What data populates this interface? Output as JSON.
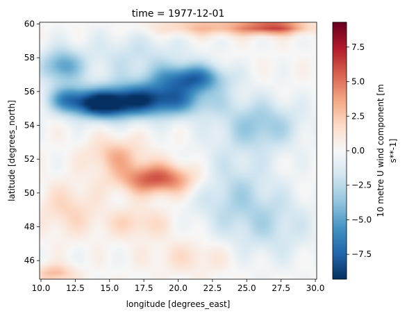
{
  "chart_data": {
    "type": "heatmap",
    "title": "time = 1977-12-01",
    "xlabel": "longitude [degrees_east]",
    "ylabel": "latitude [degrees_north]",
    "colorbar_label_lines": [
      "10 metre U wind component [m",
      "s**-1]"
    ],
    "colormap": "RdBu_r",
    "x_range": [
      9.9,
      30.1
    ],
    "y_range": [
      44.9,
      60.1
    ],
    "vmin": -9.3,
    "vmax": 9.3,
    "x_ticks": [
      10.0,
      12.5,
      15.0,
      17.5,
      20.0,
      22.5,
      25.0,
      27.5,
      30.0
    ],
    "x_tick_labels": [
      "10.0",
      "12.5",
      "15.0",
      "17.5",
      "20.0",
      "22.5",
      "25.0",
      "27.5",
      "30.0"
    ],
    "y_ticks": [
      46,
      48,
      50,
      52,
      54,
      56,
      58,
      60
    ],
    "y_tick_labels": [
      "46",
      "48",
      "50",
      "52",
      "54",
      "56",
      "58",
      "60"
    ],
    "colorbar_ticks": [
      -7.5,
      -5.0,
      -2.5,
      0.0,
      2.5,
      5.0,
      7.5
    ],
    "colorbar_tick_labels": [
      "−7.5",
      "−5.0",
      "−2.5",
      "0.0",
      "2.5",
      "5.0",
      "7.5"
    ],
    "grid_resolution_deg": 0.25,
    "features": [
      {
        "lon": 18.0,
        "lat": 55.5,
        "value": -8.5,
        "spread_lon": 4.0,
        "spread_lat": 1.0
      },
      {
        "lon": 14.5,
        "lat": 55.2,
        "value": -7.5,
        "spread_lon": 2.0,
        "spread_lat": 0.8
      },
      {
        "lon": 21.0,
        "lat": 56.8,
        "value": -6.5,
        "spread_lon": 2.5,
        "spread_lat": 0.8
      },
      {
        "lon": 11.5,
        "lat": 57.5,
        "value": -5.0,
        "spread_lon": 1.5,
        "spread_lat": 1.0
      },
      {
        "lon": 12.0,
        "lat": 55.5,
        "value": -5.0,
        "spread_lon": 1.5,
        "spread_lat": 0.8
      },
      {
        "lon": 26.0,
        "lat": 54.0,
        "value": -3.5,
        "spread_lon": 3.0,
        "spread_lat": 1.5
      },
      {
        "lon": 24.0,
        "lat": 50.0,
        "value": -2.5,
        "spread_lon": 3.0,
        "spread_lat": 2.5
      },
      {
        "lon": 27.0,
        "lat": 48.0,
        "value": -2.0,
        "spread_lon": 3.0,
        "spread_lat": 2.0
      },
      {
        "lon": 17.0,
        "lat": 58.0,
        "value": -2.0,
        "spread_lon": 4.0,
        "spread_lat": 1.5
      },
      {
        "lon": 18.5,
        "lat": 50.8,
        "value": 6.0,
        "spread_lon": 2.8,
        "spread_lat": 0.9
      },
      {
        "lon": 15.5,
        "lat": 52.2,
        "value": 3.0,
        "spread_lon": 2.0,
        "spread_lat": 1.0
      },
      {
        "lon": 27.0,
        "lat": 59.8,
        "value": 6.0,
        "spread_lon": 2.5,
        "spread_lat": 0.4
      },
      {
        "lon": 22.0,
        "lat": 59.8,
        "value": 3.0,
        "spread_lon": 4.0,
        "spread_lat": 0.5
      },
      {
        "lon": 12.0,
        "lat": 49.0,
        "value": 2.0,
        "spread_lon": 2.0,
        "spread_lat": 1.5
      },
      {
        "lon": 17.0,
        "lat": 48.2,
        "value": 2.0,
        "spread_lon": 2.5,
        "spread_lat": 0.9
      },
      {
        "lon": 21.0,
        "lat": 46.2,
        "value": 1.5,
        "spread_lon": 3.0,
        "spread_lat": 1.0
      },
      {
        "lon": 11.0,
        "lat": 45.2,
        "value": 3.0,
        "spread_lon": 1.5,
        "spread_lat": 0.5
      }
    ],
    "grid": false,
    "colorbar_position": "right"
  }
}
